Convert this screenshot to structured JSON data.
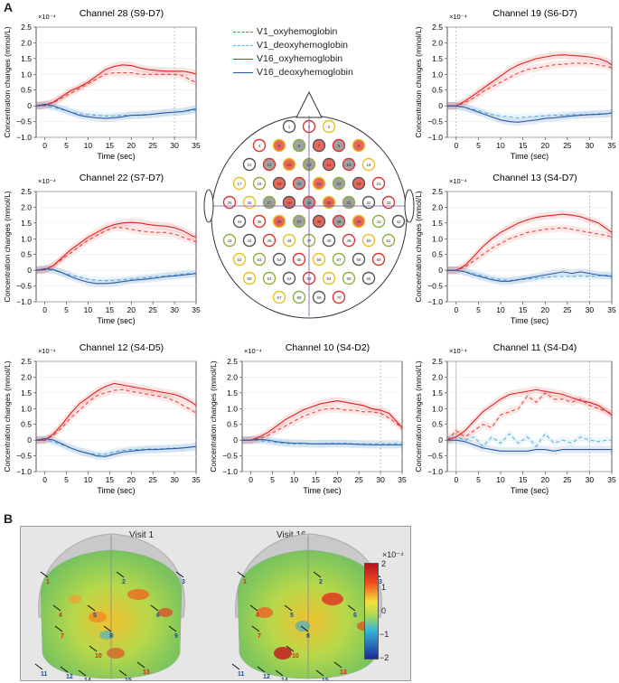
{
  "panels": {
    "a": "A",
    "b": "B"
  },
  "colors": {
    "v1_oxy": "#e8473f",
    "v1_deoxy": "#5fb6e0",
    "v16_oxy": "#e02020",
    "v16_deoxy": "#2a5aa8"
  },
  "legend": [
    {
      "label": "V1_oxyhemoglobin",
      "color": "#e8473f",
      "dash": true
    },
    {
      "label": "V1_deoxyhemoglobin",
      "color": "#5fb6e0",
      "dash": true
    },
    {
      "label": "V16_oxyhemoglobin",
      "color": "#e02020",
      "dash": false
    },
    {
      "label": "V16_deoxyhemoglobin",
      "color": "#2a5aa8",
      "dash": false
    }
  ],
  "chart_data": [
    {
      "type": "line",
      "title": "Channel 28 (S9-D7)",
      "xlabel": "Time (sec)",
      "ylabel": "Concentration changes (mmol/L)",
      "exponent": "×10⁻⁴",
      "x": [
        -2,
        0,
        2,
        4,
        6,
        8,
        10,
        12,
        14,
        16,
        18,
        20,
        22,
        24,
        26,
        28,
        30,
        32,
        34,
        35
      ],
      "xlim": [
        -2,
        35
      ],
      "ylim": [
        -1.0,
        2.5
      ],
      "xticks": [
        "0",
        "5",
        "10",
        "15",
        "20",
        "25",
        "30",
        "35"
      ],
      "yticks": [
        "−1.0",
        "−0.5",
        "0",
        "0.5",
        "1.0",
        "1.5",
        "2.0",
        "2.5"
      ],
      "vline": 30,
      "series": [
        {
          "name": "V1_oxyhemoglobin",
          "values": [
            0,
            0.02,
            0.1,
            0.25,
            0.4,
            0.55,
            0.7,
            0.85,
            1.0,
            1.05,
            1.05,
            1.05,
            1.0,
            1.0,
            1.0,
            1.0,
            1.0,
            0.95,
            0.8,
            0.75
          ]
        },
        {
          "name": "V1_deoxyhemoglobin",
          "values": [
            0,
            0,
            -0.05,
            -0.12,
            -0.2,
            -0.25,
            -0.28,
            -0.3,
            -0.32,
            -0.32,
            -0.3,
            -0.3,
            -0.28,
            -0.27,
            -0.25,
            -0.22,
            -0.2,
            -0.18,
            -0.15,
            -0.12
          ]
        },
        {
          "name": "V16_oxyhemoglobin",
          "values": [
            0,
            0.02,
            0.12,
            0.3,
            0.48,
            0.6,
            0.75,
            0.95,
            1.15,
            1.25,
            1.3,
            1.28,
            1.2,
            1.15,
            1.12,
            1.1,
            1.1,
            1.1,
            1.05,
            1.0
          ]
        },
        {
          "name": "V16_deoxyhemoglobin",
          "values": [
            0,
            0.05,
            0,
            -0.1,
            -0.2,
            -0.3,
            -0.35,
            -0.38,
            -0.4,
            -0.38,
            -0.35,
            -0.3,
            -0.3,
            -0.28,
            -0.25,
            -0.22,
            -0.2,
            -0.18,
            -0.12,
            -0.1
          ]
        }
      ]
    },
    {
      "type": "line",
      "title": "Channel 19 (S6-D7)",
      "xlabel": "Time (sec)",
      "ylabel": "Concentration changes (mmol/L)",
      "exponent": "×10⁻⁴",
      "x": [
        -2,
        0,
        2,
        4,
        6,
        8,
        10,
        12,
        14,
        16,
        18,
        20,
        22,
        24,
        26,
        28,
        30,
        32,
        34,
        35
      ],
      "xlim": [
        -2,
        35
      ],
      "ylim": [
        -1.0,
        2.5
      ],
      "xticks": [
        "0",
        "5",
        "10",
        "15",
        "20",
        "25",
        "30",
        "35"
      ],
      "yticks": [
        "−1.0",
        "−0.5",
        "0",
        "0.5",
        "1.0",
        "1.5",
        "2.0",
        "2.5"
      ],
      "vline": 0,
      "series": [
        {
          "name": "V1_oxyhemoglobin",
          "values": [
            0,
            0,
            0.1,
            0.25,
            0.45,
            0.6,
            0.75,
            0.9,
            1.05,
            1.15,
            1.2,
            1.25,
            1.3,
            1.32,
            1.35,
            1.35,
            1.35,
            1.3,
            1.25,
            1.2
          ]
        },
        {
          "name": "V1_deoxyhemoglobin",
          "values": [
            0,
            0,
            -0.05,
            -0.12,
            -0.2,
            -0.28,
            -0.32,
            -0.35,
            -0.38,
            -0.35,
            -0.33,
            -0.32,
            -0.3,
            -0.3,
            -0.28,
            -0.28,
            -0.27,
            -0.25,
            -0.25,
            -0.22
          ]
        },
        {
          "name": "V16_oxyhemoglobin",
          "values": [
            0,
            0,
            0.15,
            0.35,
            0.55,
            0.75,
            0.95,
            1.15,
            1.3,
            1.4,
            1.5,
            1.55,
            1.6,
            1.62,
            1.6,
            1.58,
            1.55,
            1.5,
            1.4,
            1.3
          ]
        },
        {
          "name": "V16_deoxyhemoglobin",
          "values": [
            0,
            0,
            -0.05,
            -0.15,
            -0.25,
            -0.35,
            -0.45,
            -0.5,
            -0.52,
            -0.48,
            -0.45,
            -0.4,
            -0.38,
            -0.35,
            -0.32,
            -0.3,
            -0.28,
            -0.27,
            -0.25,
            -0.22
          ]
        }
      ]
    },
    {
      "type": "line",
      "title": "Channel 22 (S7-D7)",
      "xlabel": "Time (sec)",
      "ylabel": "Concentration changes (mmol/L)",
      "exponent": "×10⁻⁴",
      "x": [
        -2,
        0,
        2,
        4,
        6,
        8,
        10,
        12,
        14,
        16,
        18,
        20,
        22,
        24,
        26,
        28,
        30,
        32,
        34,
        35
      ],
      "xlim": [
        -2,
        35
      ],
      "ylim": [
        -1.0,
        2.5
      ],
      "xticks": [
        "0",
        "5",
        "10",
        "15",
        "20",
        "25",
        "30",
        "35"
      ],
      "yticks": [
        "−1.0",
        "−0.5",
        "0",
        "0.5",
        "1.0",
        "1.5",
        "2.0",
        "2.5"
      ],
      "series": [
        {
          "name": "V1_oxyhemoglobin",
          "values": [
            0,
            0.02,
            0.15,
            0.35,
            0.55,
            0.75,
            0.95,
            1.1,
            1.25,
            1.35,
            1.35,
            1.3,
            1.25,
            1.22,
            1.2,
            1.2,
            1.15,
            1.05,
            0.95,
            0.9
          ]
        },
        {
          "name": "V1_deoxyhemoglobin",
          "values": [
            0,
            0.02,
            0,
            -0.08,
            -0.15,
            -0.22,
            -0.28,
            -0.32,
            -0.33,
            -0.32,
            -0.3,
            -0.28,
            -0.25,
            -0.22,
            -0.2,
            -0.18,
            -0.15,
            -0.12,
            -0.1,
            -0.1
          ]
        },
        {
          "name": "V16_oxyhemoglobin",
          "values": [
            0,
            0.02,
            0.15,
            0.4,
            0.65,
            0.85,
            1.05,
            1.2,
            1.35,
            1.45,
            1.5,
            1.52,
            1.5,
            1.45,
            1.42,
            1.4,
            1.35,
            1.25,
            1.1,
            1.05
          ]
        },
        {
          "name": "V16_deoxyhemoglobin",
          "values": [
            0,
            0.05,
            0.02,
            -0.08,
            -0.2,
            -0.3,
            -0.38,
            -0.42,
            -0.42,
            -0.4,
            -0.36,
            -0.32,
            -0.3,
            -0.27,
            -0.24,
            -0.2,
            -0.18,
            -0.15,
            -0.12,
            -0.1
          ]
        }
      ]
    },
    {
      "type": "line",
      "title": "Channel 13 (S4-D7)",
      "xlabel": "Time (sec)",
      "ylabel": "Concentration changes (mmol/L)",
      "exponent": "×10⁻⁴",
      "x": [
        -2,
        0,
        2,
        4,
        6,
        8,
        10,
        12,
        14,
        16,
        18,
        20,
        22,
        24,
        26,
        28,
        30,
        32,
        34,
        35
      ],
      "xlim": [
        -2,
        35
      ],
      "ylim": [
        -1.0,
        2.5
      ],
      "xticks": [
        "0",
        "5",
        "10",
        "15",
        "20",
        "25",
        "30",
        "35"
      ],
      "yticks": [
        "−1.0",
        "−0.5",
        "0",
        "0.5",
        "1.0",
        "1.5",
        "2.0",
        "2.5"
      ],
      "vline": 30,
      "series": [
        {
          "name": "V1_oxyhemoglobin",
          "values": [
            0,
            0,
            0.1,
            0.3,
            0.5,
            0.7,
            0.85,
            1.0,
            1.1,
            1.2,
            1.25,
            1.3,
            1.32,
            1.35,
            1.3,
            1.25,
            1.2,
            1.15,
            1.1,
            1.05
          ]
        },
        {
          "name": "V1_deoxyhemoglobin",
          "values": [
            0,
            0,
            -0.05,
            -0.1,
            -0.18,
            -0.25,
            -0.3,
            -0.32,
            -0.3,
            -0.28,
            -0.25,
            -0.22,
            -0.2,
            -0.2,
            -0.2,
            -0.18,
            -0.2,
            -0.18,
            -0.15,
            -0.15
          ]
        },
        {
          "name": "V16_oxyhemoglobin",
          "values": [
            0,
            0,
            0.15,
            0.45,
            0.75,
            1.0,
            1.2,
            1.35,
            1.5,
            1.6,
            1.68,
            1.72,
            1.75,
            1.78,
            1.75,
            1.7,
            1.6,
            1.5,
            1.3,
            1.2
          ]
        },
        {
          "name": "V16_deoxyhemoglobin",
          "values": [
            0,
            0,
            -0.05,
            -0.15,
            -0.22,
            -0.3,
            -0.35,
            -0.35,
            -0.3,
            -0.25,
            -0.2,
            -0.15,
            -0.1,
            -0.05,
            -0.1,
            -0.05,
            -0.1,
            -0.15,
            -0.18,
            -0.2
          ]
        }
      ]
    },
    {
      "type": "line",
      "title": "Channel 12 (S4-D5)",
      "xlabel": "Time (sec)",
      "ylabel": "Concentration changes (mmol/L)",
      "exponent": "×10⁻⁴",
      "x": [
        -2,
        0,
        2,
        4,
        6,
        8,
        10,
        12,
        14,
        16,
        18,
        20,
        22,
        24,
        26,
        28,
        30,
        32,
        34,
        35
      ],
      "xlim": [
        -2,
        35
      ],
      "ylim": [
        -1.0,
        2.5
      ],
      "xticks": [
        "0",
        "5",
        "10",
        "15",
        "20",
        "25",
        "30",
        "35"
      ],
      "yticks": [
        "−1.0",
        "−0.5",
        "0",
        "0.5",
        "1.0",
        "1.5",
        "2.0",
        "2.5"
      ],
      "series": [
        {
          "name": "V1_oxyhemoglobin",
          "values": [
            0,
            0,
            0.15,
            0.4,
            0.7,
            0.95,
            1.2,
            1.4,
            1.5,
            1.58,
            1.6,
            1.55,
            1.5,
            1.45,
            1.4,
            1.35,
            1.25,
            1.1,
            0.95,
            0.85
          ]
        },
        {
          "name": "V1_deoxyhemoglobin",
          "values": [
            0,
            0,
            -0.05,
            -0.15,
            -0.25,
            -0.35,
            -0.42,
            -0.45,
            -0.45,
            -0.38,
            -0.33,
            -0.3,
            -0.3,
            -0.28,
            -0.28,
            -0.27,
            -0.25,
            -0.25,
            -0.22,
            -0.2
          ]
        },
        {
          "name": "V16_oxyhemoglobin",
          "values": [
            0,
            0,
            0.2,
            0.5,
            0.85,
            1.15,
            1.35,
            1.55,
            1.7,
            1.8,
            1.75,
            1.7,
            1.65,
            1.6,
            1.55,
            1.5,
            1.45,
            1.35,
            1.2,
            1.1
          ]
        },
        {
          "name": "V16_deoxyhemoglobin",
          "values": [
            0,
            0.05,
            0,
            -0.12,
            -0.25,
            -0.35,
            -0.42,
            -0.5,
            -0.52,
            -0.45,
            -0.38,
            -0.35,
            -0.32,
            -0.3,
            -0.3,
            -0.28,
            -0.27,
            -0.25,
            -0.22,
            -0.2
          ]
        }
      ]
    },
    {
      "type": "line",
      "title": "Channel 10 (S4-D2)",
      "xlabel": "Time (sec)",
      "ylabel": "Concentration changes (mmol/L)",
      "exponent": "×10⁻⁴",
      "x": [
        -2,
        0,
        2,
        4,
        6,
        8,
        10,
        12,
        14,
        16,
        18,
        20,
        22,
        24,
        26,
        28,
        30,
        32,
        34,
        35
      ],
      "xlim": [
        -2,
        35
      ],
      "ylim": [
        -1.0,
        2.5
      ],
      "xticks": [
        "0",
        "5",
        "10",
        "15",
        "20",
        "25",
        "30",
        "35"
      ],
      "yticks": [
        "−1.0",
        "−0.5",
        "0",
        "0.5",
        "1.0",
        "1.5",
        "2.0",
        "2.5"
      ],
      "vline": 30,
      "series": [
        {
          "name": "V1_oxyhemoglobin",
          "values": [
            0,
            0,
            0.05,
            0.15,
            0.3,
            0.45,
            0.6,
            0.75,
            0.85,
            0.95,
            1.0,
            1.0,
            0.95,
            0.95,
            0.9,
            0.9,
            0.85,
            0.7,
            0.5,
            0.35
          ]
        },
        {
          "name": "V1_deoxyhemoglobin",
          "values": [
            0,
            0,
            -0.02,
            -0.05,
            -0.08,
            -0.1,
            -0.12,
            -0.12,
            -0.12,
            -0.12,
            -0.1,
            -0.1,
            -0.1,
            -0.12,
            -0.12,
            -0.12,
            -0.12,
            -0.12,
            -0.12,
            -0.12
          ]
        },
        {
          "name": "V16_oxyhemoglobin",
          "values": [
            0,
            0,
            0.1,
            0.25,
            0.45,
            0.65,
            0.8,
            0.95,
            1.05,
            1.15,
            1.2,
            1.25,
            1.2,
            1.15,
            1.1,
            1.0,
            0.95,
            0.85,
            0.55,
            0.4
          ]
        },
        {
          "name": "V16_deoxyhemoglobin",
          "values": [
            0,
            0,
            0.02,
            0,
            -0.05,
            -0.08,
            -0.1,
            -0.1,
            -0.12,
            -0.12,
            -0.12,
            -0.12,
            -0.12,
            -0.13,
            -0.14,
            -0.15,
            -0.15,
            -0.15,
            -0.15,
            -0.15
          ]
        }
      ]
    },
    {
      "type": "line",
      "title": "Channel 11 (S4-D4)",
      "xlabel": "Time (sec)",
      "ylabel": "Concentration changes (mmol/L)",
      "exponent": "×10⁻⁴",
      "x": [
        -2,
        0,
        2,
        4,
        6,
        8,
        10,
        12,
        14,
        16,
        18,
        20,
        22,
        24,
        26,
        28,
        30,
        32,
        34,
        35
      ],
      "xlim": [
        -2,
        35
      ],
      "ylim": [
        -1.0,
        2.5
      ],
      "xticks": [
        "0",
        "5",
        "10",
        "15",
        "20",
        "25",
        "30",
        "35"
      ],
      "yticks": [
        "−1.0",
        "−0.5",
        "0",
        "0.5",
        "1.0",
        "1.5",
        "2.0",
        "2.5"
      ],
      "vline": 30,
      "vline2": 0,
      "series": [
        {
          "name": "V1_oxyhemoglobin",
          "values": [
            0,
            0.3,
            0.1,
            0.3,
            0.5,
            0.4,
            0.8,
            0.9,
            1.0,
            1.4,
            1.2,
            1.5,
            1.3,
            1.3,
            1.2,
            1.3,
            1.1,
            1.0,
            0.9,
            0.85
          ]
        },
        {
          "name": "V1_deoxyhemoglobin",
          "values": [
            0,
            0.1,
            0,
            0.1,
            -0.2,
            0.1,
            -0.1,
            0.2,
            -0.1,
            0.1,
            -0.2,
            0.2,
            -0.1,
            0,
            -0.1,
            0.1,
            0,
            -0.05,
            0,
            0
          ]
        },
        {
          "name": "V16_oxyhemoglobin",
          "values": [
            0,
            0.1,
            0.3,
            0.6,
            0.9,
            1.1,
            1.3,
            1.45,
            1.5,
            1.55,
            1.6,
            1.55,
            1.5,
            1.45,
            1.35,
            1.25,
            1.2,
            1.1,
            0.9,
            0.8
          ]
        },
        {
          "name": "V16_deoxyhemoglobin",
          "values": [
            0,
            0,
            -0.05,
            -0.15,
            -0.25,
            -0.3,
            -0.35,
            -0.35,
            -0.35,
            -0.35,
            -0.3,
            -0.3,
            -0.35,
            -0.3,
            -0.3,
            -0.3,
            -0.3,
            -0.3,
            -0.3,
            -0.3
          ]
        }
      ]
    }
  ],
  "head": {
    "optode_labels": [
      "1",
      "2",
      "3",
      "4",
      "5",
      "6",
      "7",
      "8",
      "9",
      "10",
      "11",
      "12",
      "13",
      "14",
      "15",
      "16"
    ]
  },
  "brain": {
    "visits": [
      "Visit 1",
      "Visit 16"
    ],
    "colorbar": {
      "exponent": "×10⁻⁴",
      "ticks": [
        "2",
        "1",
        "0",
        "−1",
        "−2"
      ]
    },
    "channel_labels_left": [
      "1",
      "2",
      "3",
      "4",
      "5",
      "6",
      "7",
      "8",
      "9",
      "10",
      "11",
      "12",
      "13",
      "14",
      "15"
    ]
  }
}
